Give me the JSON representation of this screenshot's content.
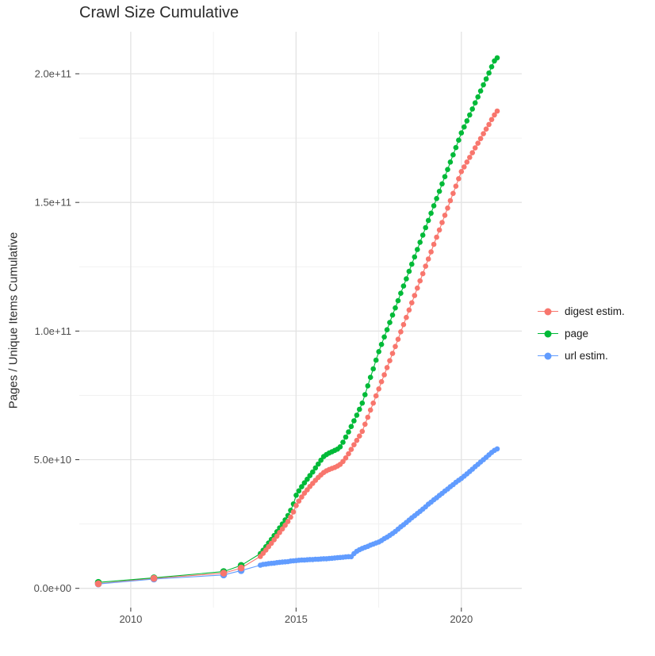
{
  "title": "Crawl Size Cumulative",
  "y_axis": {
    "label": "Pages / Unique Items Cumulative",
    "tick_labels": [
      "0.0e+00",
      "5.0e+10",
      "1.0e+11",
      "1.5e+11",
      "2.0e+11"
    ]
  },
  "x_axis": {
    "tick_labels": [
      "2010",
      "2015",
      "2020"
    ]
  },
  "legend": {
    "items": [
      {
        "label": "digest estim.",
        "color": "#F8766D"
      },
      {
        "label": "page",
        "color": "#00BA38"
      },
      {
        "label": "url estim.",
        "color": "#619CFF"
      }
    ]
  },
  "chart_data": {
    "type": "scatter",
    "title": "Crawl Size Cumulative",
    "xlabel": "",
    "ylabel": "Pages / Unique Items Cumulative",
    "values_unit": "1e9 (billions); y axis shown in scientific notation",
    "xlim": [
      2008.4,
      2021.8
    ],
    "ylim_e9": [
      -8,
      216
    ],
    "x_major_ticks": [
      2010,
      2015,
      2020
    ],
    "x_minor_ticks": [
      2012.5,
      2017.5
    ],
    "y_major_ticks_e9": [
      0,
      50,
      100,
      150,
      200
    ],
    "y_minor_ticks_e9": [
      25,
      75,
      125,
      175
    ],
    "grid": "on",
    "legend_position": "right",
    "series": [
      {
        "name": "digest estim.",
        "color": "#F8766D",
        "early_points": [
          [
            2009.02,
            1.8
          ],
          [
            2010.7,
            3.9
          ],
          [
            2012.81,
            5.9
          ],
          [
            2013.34,
            7.9
          ]
        ],
        "monthly": {
          "start_year": 2013.92,
          "step_years": 0.0833,
          "values_e9": [
            12.4,
            13.6,
            14.9,
            16.2,
            17.5,
            18.9,
            20.3,
            21.7,
            23.1,
            24.5,
            26.0,
            27.7,
            29.7,
            32.2,
            33.9,
            35.5,
            37.0,
            38.3,
            39.6,
            40.8,
            42.0,
            43.1,
            44.1,
            45.0,
            45.7,
            46.2,
            46.6,
            47.0,
            47.5,
            48.2,
            49.3,
            50.7,
            52.3,
            54.0,
            55.8,
            57.5,
            59.2,
            61.0,
            63.8,
            66.5,
            69.3,
            72.0,
            74.8,
            77.5,
            80.3,
            83.0,
            85.8,
            88.5,
            91.3,
            94.0,
            96.8,
            99.7,
            102.5,
            105.3,
            108.2,
            111.0,
            113.8,
            116.7,
            119.5,
            122.3,
            125.2,
            128.0,
            130.8,
            133.7,
            136.5,
            139.3,
            142.2,
            145.0,
            147.8,
            150.7,
            153.5,
            156.3,
            159.2,
            162.0,
            163.8,
            165.7,
            167.5,
            169.3,
            171.2,
            173.0,
            174.8,
            176.7,
            178.5,
            180.3,
            182.2,
            184.0,
            185.5
          ]
        }
      },
      {
        "name": "page",
        "color": "#00BA38",
        "early_points": [
          [
            2009.02,
            2.3
          ],
          [
            2010.7,
            4.1
          ],
          [
            2012.81,
            6.5
          ],
          [
            2013.34,
            8.9
          ]
        ],
        "monthly": {
          "start_year": 2013.92,
          "step_years": 0.0833,
          "values_e9": [
            13.5,
            14.8,
            16.2,
            17.6,
            19.0,
            20.5,
            22.0,
            23.5,
            25.0,
            26.6,
            28.3,
            30.3,
            32.8,
            36.2,
            37.9,
            39.5,
            41.0,
            42.4,
            43.8,
            45.2,
            46.8,
            48.3,
            49.8,
            51.2,
            52.0,
            52.6,
            53.1,
            53.6,
            54.1,
            55.0,
            56.8,
            58.8,
            60.8,
            62.9,
            65.1,
            67.3,
            69.6,
            72.0,
            75.3,
            78.7,
            82.0,
            85.3,
            88.7,
            92.0,
            94.8,
            97.7,
            100.5,
            103.3,
            106.2,
            109.0,
            111.8,
            114.7,
            117.5,
            120.3,
            123.2,
            126.0,
            128.8,
            131.7,
            134.5,
            137.3,
            140.2,
            143.0,
            145.8,
            148.7,
            151.5,
            154.3,
            157.2,
            160.0,
            162.8,
            165.7,
            168.5,
            171.3,
            174.2,
            177.0,
            179.3,
            181.7,
            184.0,
            186.3,
            188.7,
            191.0,
            193.3,
            195.7,
            198.0,
            200.3,
            202.7,
            205.0,
            206.2
          ]
        }
      },
      {
        "name": "url estim.",
        "color": "#619CFF",
        "early_points": [
          [
            2009.02,
            1.7
          ],
          [
            2010.7,
            3.6
          ],
          [
            2012.81,
            5.2
          ],
          [
            2013.34,
            6.9
          ]
        ],
        "monthly": {
          "start_year": 2013.92,
          "step_years": 0.0833,
          "values_e9": [
            9.0,
            9.3,
            9.4,
            9.6,
            9.7,
            9.8,
            10.0,
            10.1,
            10.2,
            10.3,
            10.4,
            10.6,
            10.7,
            10.8,
            10.9,
            11.0,
            11.0,
            11.1,
            11.2,
            11.2,
            11.3,
            11.3,
            11.4,
            11.5,
            11.5,
            11.6,
            11.7,
            11.8,
            11.9,
            12.0,
            12.1,
            12.2,
            12.3,
            12.3,
            13.5,
            14.4,
            15.0,
            15.5,
            15.9,
            16.3,
            16.8,
            17.2,
            17.6,
            18.0,
            18.6,
            19.3,
            19.9,
            20.6,
            21.3,
            22.1,
            23.0,
            23.9,
            24.7,
            25.6,
            26.5,
            27.4,
            28.2,
            29.1,
            29.9,
            30.8,
            31.7,
            32.7,
            33.5,
            34.4,
            35.2,
            36.1,
            36.9,
            37.8,
            38.6,
            39.5,
            40.3,
            41.2,
            42.0,
            42.7,
            43.6,
            44.5,
            45.4,
            46.3,
            47.3,
            48.2,
            49.1,
            50.0,
            50.9,
            51.9,
            52.8,
            53.6,
            54.2
          ]
        }
      }
    ]
  }
}
